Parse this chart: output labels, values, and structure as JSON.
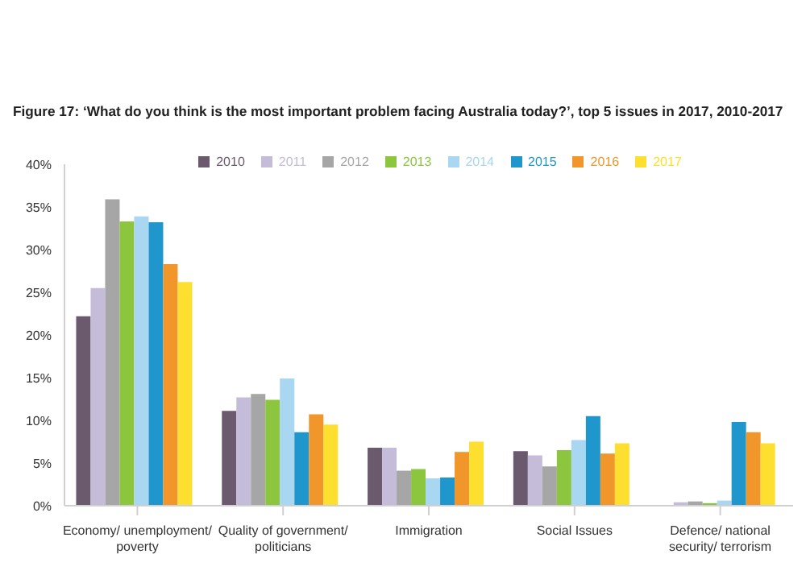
{
  "chart_data": {
    "type": "bar",
    "title": "Figure 17: ‘What do you think is the most important problem facing Australia today?’, top 5 issues in 2017, 2010-2017",
    "categories": [
      "Economy/ unemployment/ poverty",
      "Quality of government/ politicians",
      "Immigration",
      "Social Issues",
      "Defence/ national security/ terrorism"
    ],
    "series": [
      {
        "name": "2010",
        "color": "#6b5a6e",
        "values": [
          22.2,
          11.1,
          6.8,
          6.4,
          null
        ]
      },
      {
        "name": "2011",
        "color": "#c4bcd8",
        "values": [
          25.5,
          12.7,
          6.8,
          5.9,
          0.4
        ]
      },
      {
        "name": "2012",
        "color": "#a6a6a6",
        "values": [
          35.9,
          13.1,
          4.1,
          4.6,
          0.5
        ]
      },
      {
        "name": "2013",
        "color": "#8cc63f",
        "values": [
          33.3,
          12.4,
          4.3,
          6.5,
          0.3
        ]
      },
      {
        "name": "2014",
        "color": "#a9d6f0",
        "values": [
          33.9,
          14.9,
          3.2,
          7.7,
          0.6
        ]
      },
      {
        "name": "2015",
        "color": "#1f97cc",
        "values": [
          33.2,
          8.6,
          3.3,
          10.5,
          9.8
        ]
      },
      {
        "name": "2016",
        "color": "#f0962a",
        "values": [
          28.3,
          10.7,
          6.3,
          6.1,
          8.6
        ]
      },
      {
        "name": "2017",
        "color": "#fde02f",
        "values": [
          26.2,
          9.5,
          7.5,
          7.3,
          7.3
        ]
      }
    ],
    "ylim": [
      0,
      40
    ],
    "yticks": [
      {
        "value": 0,
        "label": "0%"
      },
      {
        "value": 5,
        "label": "5%"
      },
      {
        "value": 10,
        "label": "10%"
      },
      {
        "value": 15,
        "label": "15%"
      },
      {
        "value": 20,
        "label": "20%"
      },
      {
        "value": 25,
        "label": "25%"
      },
      {
        "value": 30,
        "label": "30%"
      },
      {
        "value": 35,
        "label": "35%"
      },
      {
        "value": 40,
        "label": "40%"
      }
    ],
    "grid": false,
    "legend": "top"
  }
}
